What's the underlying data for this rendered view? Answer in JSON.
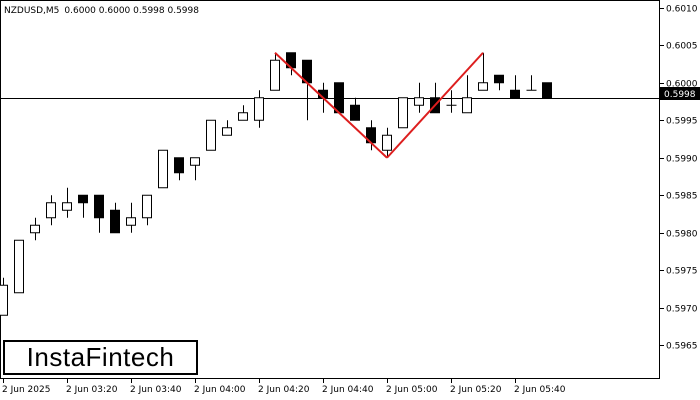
{
  "header": {
    "symbol_tf": "NZDUSD,M5",
    "ohlc": "0.6000 0.6000 0.5998 0.5998"
  },
  "logo": {
    "text": "InstaFintech"
  },
  "current_price_label": "0.5998",
  "colors": {
    "pattern": "#dd1e1e",
    "candle": "#000000",
    "background": "#ffffff"
  },
  "chart_data": {
    "type": "candlestick",
    "symbol": "NZDUSD",
    "timeframe": "M5",
    "y_range": [
      0.59605,
      0.60105
    ],
    "y_ticks": [
      "0.6010",
      "0.6005",
      "0.6000",
      "0.5995",
      "0.5990",
      "0.5985",
      "0.5980",
      "0.5975",
      "0.5970",
      "0.5965"
    ],
    "x_labels": [
      "2 Jun 2025",
      "2 Jun 03:20",
      "2 Jun 03:40",
      "2 Jun 04:00",
      "2 Jun 04:20",
      "2 Jun 04:40",
      "2 Jun 05:00",
      "2 Jun 05:20",
      "2 Jun 05:40"
    ],
    "current_price": 0.5998,
    "candles": [
      {
        "o": 0.5969,
        "h": 0.5974,
        "l": 0.5969,
        "c": 0.5973
      },
      {
        "o": 0.5972,
        "h": 0.5979,
        "l": 0.5972,
        "c": 0.5979
      },
      {
        "o": 0.598,
        "h": 0.5982,
        "l": 0.5979,
        "c": 0.5981
      },
      {
        "o": 0.5982,
        "h": 0.5985,
        "l": 0.5981,
        "c": 0.5984
      },
      {
        "o": 0.5983,
        "h": 0.5986,
        "l": 0.5982,
        "c": 0.5984
      },
      {
        "o": 0.5985,
        "h": 0.5985,
        "l": 0.5982,
        "c": 0.5984
      },
      {
        "o": 0.5985,
        "h": 0.5985,
        "l": 0.598,
        "c": 0.5982
      },
      {
        "o": 0.5983,
        "h": 0.5984,
        "l": 0.598,
        "c": 0.598
      },
      {
        "o": 0.5981,
        "h": 0.5984,
        "l": 0.598,
        "c": 0.5982
      },
      {
        "o": 0.5982,
        "h": 0.5985,
        "l": 0.5981,
        "c": 0.5985
      },
      {
        "o": 0.5986,
        "h": 0.5991,
        "l": 0.5986,
        "c": 0.5991
      },
      {
        "o": 0.599,
        "h": 0.599,
        "l": 0.5987,
        "c": 0.5988
      },
      {
        "o": 0.5989,
        "h": 0.599,
        "l": 0.5987,
        "c": 0.599
      },
      {
        "o": 0.5991,
        "h": 0.5995,
        "l": 0.5991,
        "c": 0.5995
      },
      {
        "o": 0.5993,
        "h": 0.5995,
        "l": 0.5993,
        "c": 0.5994
      },
      {
        "o": 0.5995,
        "h": 0.5997,
        "l": 0.5995,
        "c": 0.5996
      },
      {
        "o": 0.5995,
        "h": 0.5999,
        "l": 0.5994,
        "c": 0.5998
      },
      {
        "o": 0.5999,
        "h": 0.6004,
        "l": 0.5999,
        "c": 0.6003
      },
      {
        "o": 0.6004,
        "h": 0.6004,
        "l": 0.6001,
        "c": 0.6002
      },
      {
        "o": 0.6003,
        "h": 0.6003,
        "l": 0.5995,
        "c": 0.6
      },
      {
        "o": 0.5999,
        "h": 0.6,
        "l": 0.5996,
        "c": 0.5998
      },
      {
        "o": 0.6,
        "h": 0.6,
        "l": 0.5996,
        "c": 0.5996
      },
      {
        "o": 0.5997,
        "h": 0.5998,
        "l": 0.5995,
        "c": 0.5995
      },
      {
        "o": 0.5994,
        "h": 0.5995,
        "l": 0.5991,
        "c": 0.5992
      },
      {
        "o": 0.5991,
        "h": 0.5994,
        "l": 0.599,
        "c": 0.5993
      },
      {
        "o": 0.5994,
        "h": 0.5998,
        "l": 0.5994,
        "c": 0.5998
      },
      {
        "o": 0.5997,
        "h": 0.6,
        "l": 0.5996,
        "c": 0.5998
      },
      {
        "o": 0.5998,
        "h": 0.6,
        "l": 0.5996,
        "c": 0.5996
      },
      {
        "o": 0.5997,
        "h": 0.5999,
        "l": 0.5996,
        "c": 0.5997
      },
      {
        "o": 0.5996,
        "h": 0.6001,
        "l": 0.5996,
        "c": 0.5998
      },
      {
        "o": 0.5999,
        "h": 0.6004,
        "l": 0.5999,
        "c": 0.6
      },
      {
        "o": 0.6001,
        "h": 0.6001,
        "l": 0.5999,
        "c": 0.6
      },
      {
        "o": 0.5999,
        "h": 0.6001,
        "l": 0.5998,
        "c": 0.5998
      },
      {
        "o": 0.5999,
        "h": 0.6001,
        "l": 0.5999,
        "c": 0.5999
      },
      {
        "o": 0.6,
        "h": 0.6,
        "l": 0.5998,
        "c": 0.5998
      }
    ],
    "pattern": {
      "name": "Double Top",
      "points": [
        {
          "candle": 17,
          "price": 0.6004
        },
        {
          "candle": 24,
          "price": 0.599
        },
        {
          "candle": 30,
          "price": 0.6004
        }
      ]
    }
  }
}
